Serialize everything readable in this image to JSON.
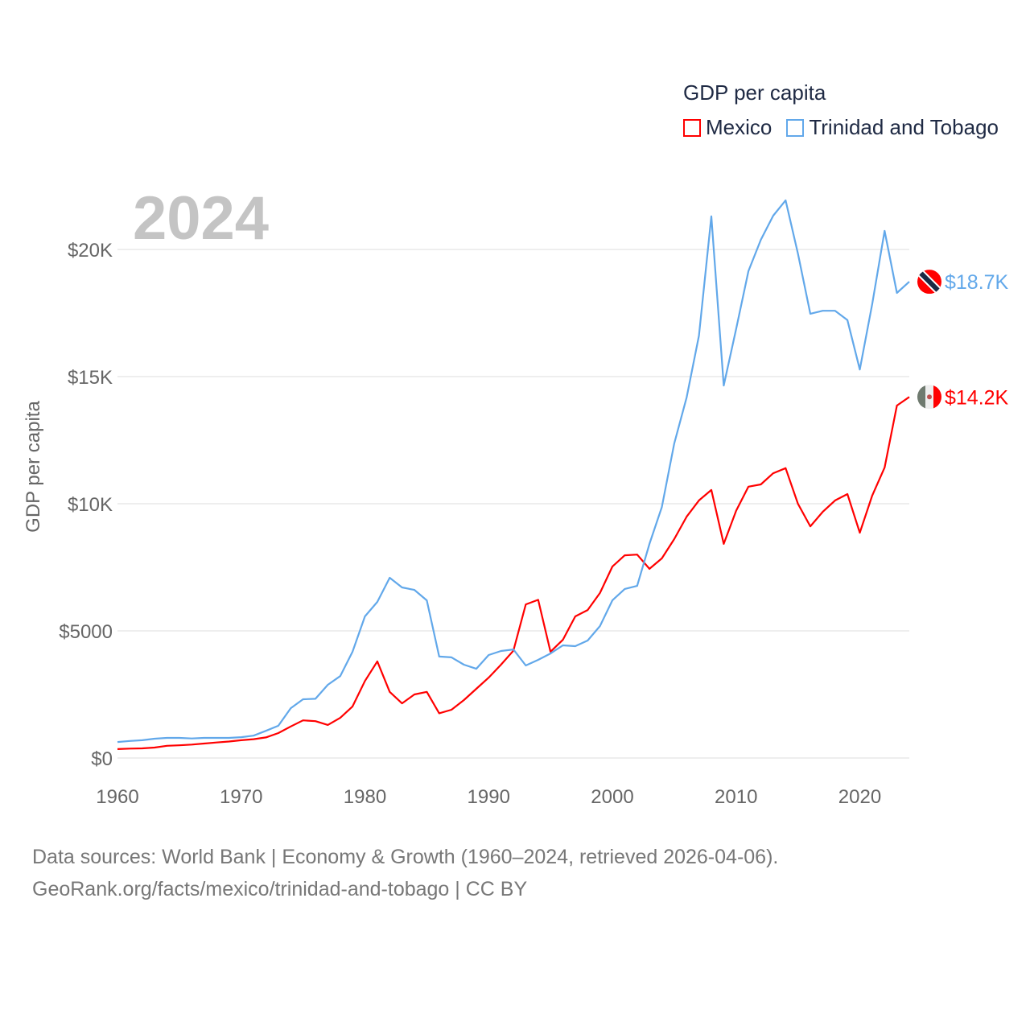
{
  "chart_data": {
    "type": "line",
    "title": "GDP per capita",
    "year_label": "2024",
    "xlabel": "",
    "ylabel": "GDP per capita",
    "xlim": [
      1960,
      2024
    ],
    "ylim": [
      0,
      22500
    ],
    "x_ticks": [
      1960,
      1970,
      1980,
      1990,
      2000,
      2010,
      2020
    ],
    "x_tick_labels": [
      "1960",
      "1970",
      "1980",
      "1990",
      "2000",
      "2010",
      "2020"
    ],
    "y_ticks": [
      0,
      5000,
      10000,
      15000,
      20000
    ],
    "y_tick_labels": [
      "$0",
      "$5000",
      "$10K",
      "$15K",
      "$20K"
    ],
    "grid": true,
    "legend_position": "top-right",
    "x": [
      1960,
      1961,
      1962,
      1963,
      1964,
      1965,
      1966,
      1967,
      1968,
      1969,
      1970,
      1971,
      1972,
      1973,
      1974,
      1975,
      1976,
      1977,
      1978,
      1979,
      1980,
      1981,
      1982,
      1983,
      1984,
      1985,
      1986,
      1987,
      1988,
      1989,
      1990,
      1991,
      1992,
      1993,
      1994,
      1995,
      1996,
      1997,
      1998,
      1999,
      2000,
      2001,
      2002,
      2003,
      2004,
      2005,
      2006,
      2007,
      2008,
      2009,
      2010,
      2011,
      2012,
      2013,
      2014,
      2015,
      2016,
      2017,
      2018,
      2019,
      2020,
      2021,
      2022,
      2023,
      2024
    ],
    "series": [
      {
        "name": "Mexico",
        "color": "#ff0000",
        "end_label": "$14.2K",
        "flag": "mexico-flag",
        "values": [
          350,
          370,
          380,
          410,
          480,
          500,
          530,
          570,
          610,
          650,
          700,
          740,
          810,
          980,
          1240,
          1480,
          1450,
          1300,
          1580,
          2030,
          3030,
          3800,
          2600,
          2150,
          2500,
          2600,
          1760,
          1900,
          2280,
          2720,
          3160,
          3670,
          4220,
          6040,
          6220,
          4180,
          4650,
          5570,
          5820,
          6490,
          7530,
          7970,
          8000,
          7440,
          7850,
          8610,
          9490,
          10130,
          10540,
          8420,
          9720,
          10670,
          10760,
          11200,
          11400,
          10000,
          9110,
          9680,
          10130,
          10380,
          8860,
          10320,
          11420,
          13860,
          14200
        ]
      },
      {
        "name": "Trinidad and Tobago",
        "color": "#62a8ea",
        "end_label": "$18.7K",
        "flag": "trinidad-and-tobago-flag",
        "values": [
          630,
          670,
          700,
          760,
          790,
          790,
          770,
          790,
          790,
          790,
          820,
          880,
          1070,
          1270,
          1960,
          2310,
          2330,
          2880,
          3220,
          4180,
          5570,
          6140,
          7090,
          6710,
          6610,
          6200,
          3990,
          3960,
          3670,
          3510,
          4050,
          4210,
          4270,
          3640,
          3860,
          4110,
          4430,
          4400,
          4620,
          5190,
          6200,
          6650,
          6770,
          8420,
          9870,
          12370,
          14180,
          16610,
          21300,
          14650,
          16870,
          19150,
          20380,
          21330,
          21930,
          19840,
          17470,
          17590,
          17590,
          17220,
          15280,
          17850,
          20730,
          18290,
          18730
        ]
      }
    ]
  },
  "footer": {
    "line1": "Data sources: World Bank | Economy & Growth (1960–2024, retrieved 2026-04-06).",
    "line2": "GeoRank.org/facts/mexico/trinidad-and-tobago | CC BY"
  }
}
